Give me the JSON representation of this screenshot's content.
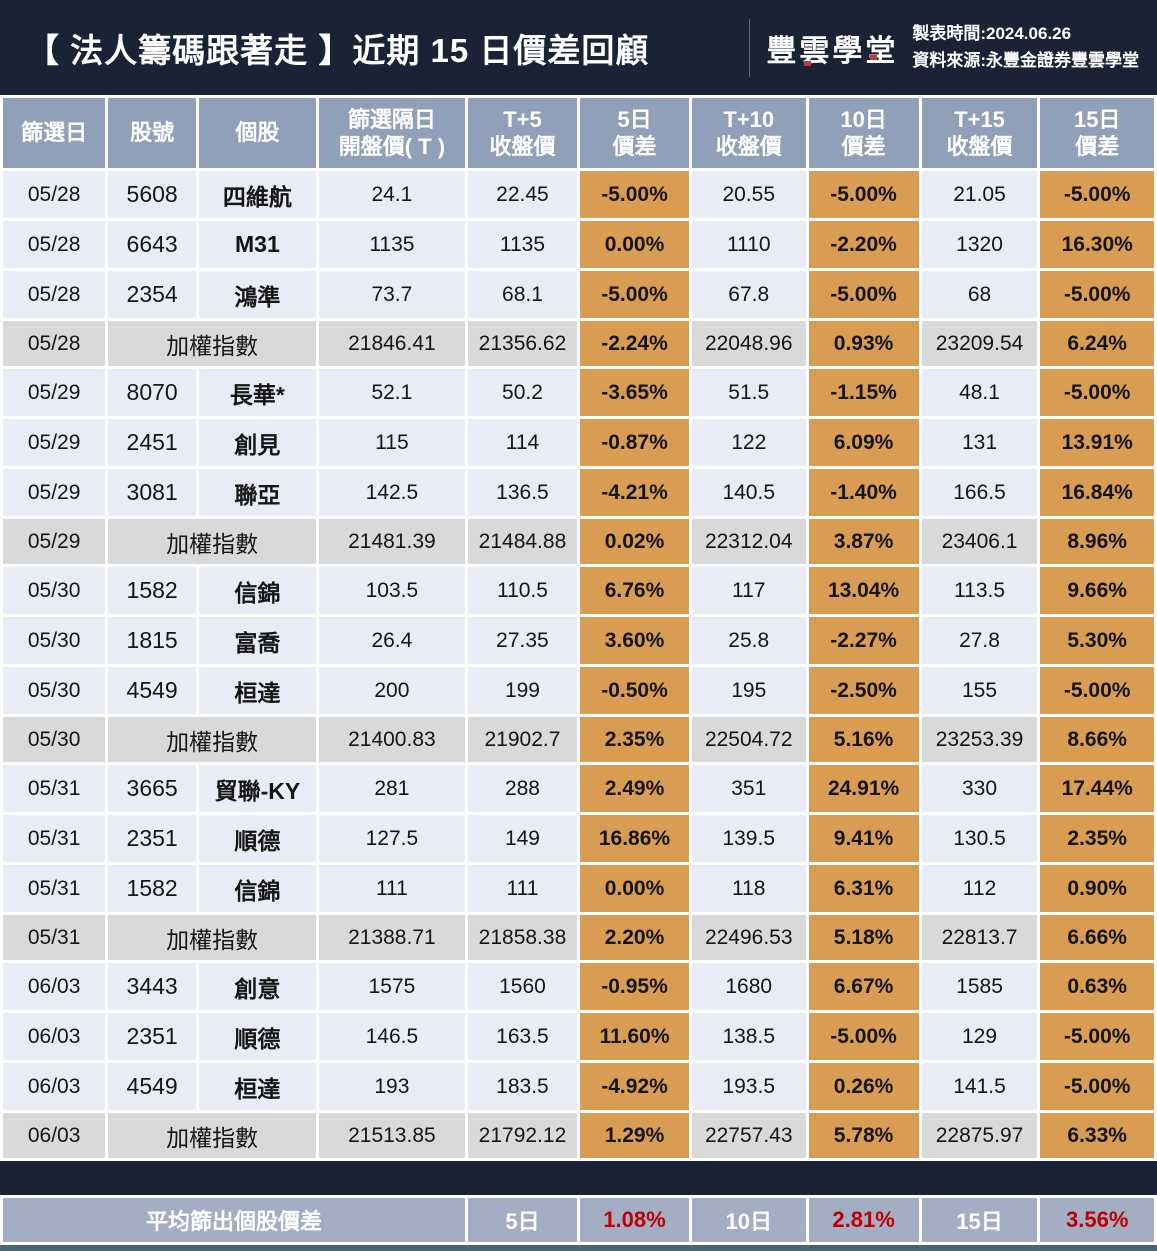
{
  "header": {
    "title": "【 法人籌碼跟著走 】近期 15 日價差回顧",
    "logo": "豐雲學堂",
    "made_time": "製表時間:2024.06.26",
    "source": "資料來源:永豐金證券豐雲學堂"
  },
  "colors": {
    "navy": "#1a2336",
    "header_cell": "#91a0b9",
    "row_bg": "#e9ecf6",
    "index_row_bg": "#d9d9d9",
    "diff_cell_orange": "#d99c53",
    "footer_bg": "#a3aec4",
    "footer_value_red": "#c00000",
    "logo_accent_red": "#c43a2e",
    "bottom_strip": "#4a6473"
  },
  "chart_data": {
    "type": "table",
    "columns": [
      [
        "篩選日"
      ],
      [
        "股號"
      ],
      [
        "個股"
      ],
      [
        "篩選隔日",
        "開盤價( T )"
      ],
      [
        "T+5",
        "收盤價"
      ],
      [
        "5日",
        "價差"
      ],
      [
        "T+10",
        "收盤價"
      ],
      [
        "10日",
        "價差"
      ],
      [
        "T+15",
        "收盤價"
      ],
      [
        "15日",
        "價差"
      ]
    ],
    "rows": [
      {
        "kind": "stock",
        "date": "05/28",
        "code": "5608",
        "name": "四維航",
        "open": "24.1",
        "t5": "22.45",
        "d5": "-5.00%",
        "t10": "20.55",
        "d10": "-5.00%",
        "t15": "21.05",
        "d15": "-5.00%"
      },
      {
        "kind": "stock",
        "date": "05/28",
        "code": "6643",
        "name": "M31",
        "open": "1135",
        "t5": "1135",
        "d5": "0.00%",
        "t10": "1110",
        "d10": "-2.20%",
        "t15": "1320",
        "d15": "16.30%"
      },
      {
        "kind": "stock",
        "date": "05/28",
        "code": "2354",
        "name": "鴻準",
        "open": "73.7",
        "t5": "68.1",
        "d5": "-5.00%",
        "t10": "67.8",
        "d10": "-5.00%",
        "t15": "68",
        "d15": "-5.00%"
      },
      {
        "kind": "index",
        "date": "05/28",
        "name": "加權指數",
        "open": "21846.41",
        "t5": "21356.62",
        "d5": "-2.24%",
        "t10": "22048.96",
        "d10": "0.93%",
        "t15": "23209.54",
        "d15": "6.24%"
      },
      {
        "kind": "stock",
        "date": "05/29",
        "code": "8070",
        "name": "長華*",
        "open": "52.1",
        "t5": "50.2",
        "d5": "-3.65%",
        "t10": "51.5",
        "d10": "-1.15%",
        "t15": "48.1",
        "d15": "-5.00%"
      },
      {
        "kind": "stock",
        "date": "05/29",
        "code": "2451",
        "name": "創見",
        "open": "115",
        "t5": "114",
        "d5": "-0.87%",
        "t10": "122",
        "d10": "6.09%",
        "t15": "131",
        "d15": "13.91%"
      },
      {
        "kind": "stock",
        "date": "05/29",
        "code": "3081",
        "name": "聯亞",
        "open": "142.5",
        "t5": "136.5",
        "d5": "-4.21%",
        "t10": "140.5",
        "d10": "-1.40%",
        "t15": "166.5",
        "d15": "16.84%"
      },
      {
        "kind": "index",
        "date": "05/29",
        "name": "加權指數",
        "open": "21481.39",
        "t5": "21484.88",
        "d5": "0.02%",
        "t10": "22312.04",
        "d10": "3.87%",
        "t15": "23406.1",
        "d15": "8.96%"
      },
      {
        "kind": "stock",
        "date": "05/30",
        "code": "1582",
        "name": "信錦",
        "open": "103.5",
        "t5": "110.5",
        "d5": "6.76%",
        "t10": "117",
        "d10": "13.04%",
        "t15": "113.5",
        "d15": "9.66%"
      },
      {
        "kind": "stock",
        "date": "05/30",
        "code": "1815",
        "name": "富喬",
        "open": "26.4",
        "t5": "27.35",
        "d5": "3.60%",
        "t10": "25.8",
        "d10": "-2.27%",
        "t15": "27.8",
        "d15": "5.30%"
      },
      {
        "kind": "stock",
        "date": "05/30",
        "code": "4549",
        "name": "桓達",
        "open": "200",
        "t5": "199",
        "d5": "-0.50%",
        "t10": "195",
        "d10": "-2.50%",
        "t15": "155",
        "d15": "-5.00%"
      },
      {
        "kind": "index",
        "date": "05/30",
        "name": "加權指數",
        "open": "21400.83",
        "t5": "21902.7",
        "d5": "2.35%",
        "t10": "22504.72",
        "d10": "5.16%",
        "t15": "23253.39",
        "d15": "8.66%"
      },
      {
        "kind": "stock",
        "date": "05/31",
        "code": "3665",
        "name": "貿聯-KY",
        "open": "281",
        "t5": "288",
        "d5": "2.49%",
        "t10": "351",
        "d10": "24.91%",
        "t15": "330",
        "d15": "17.44%"
      },
      {
        "kind": "stock",
        "date": "05/31",
        "code": "2351",
        "name": "順德",
        "open": "127.5",
        "t5": "149",
        "d5": "16.86%",
        "t10": "139.5",
        "d10": "9.41%",
        "t15": "130.5",
        "d15": "2.35%"
      },
      {
        "kind": "stock",
        "date": "05/31",
        "code": "1582",
        "name": "信錦",
        "open": "111",
        "t5": "111",
        "d5": "0.00%",
        "t10": "118",
        "d10": "6.31%",
        "t15": "112",
        "d15": "0.90%"
      },
      {
        "kind": "index",
        "date": "05/31",
        "name": "加權指數",
        "open": "21388.71",
        "t5": "21858.38",
        "d5": "2.20%",
        "t10": "22496.53",
        "d10": "5.18%",
        "t15": "22813.7",
        "d15": "6.66%"
      },
      {
        "kind": "stock",
        "date": "06/03",
        "code": "3443",
        "name": "創意",
        "open": "1575",
        "t5": "1560",
        "d5": "-0.95%",
        "t10": "1680",
        "d10": "6.67%",
        "t15": "1585",
        "d15": "0.63%"
      },
      {
        "kind": "stock",
        "date": "06/03",
        "code": "2351",
        "name": "順德",
        "open": "146.5",
        "t5": "163.5",
        "d5": "11.60%",
        "t10": "138.5",
        "d10": "-5.00%",
        "t15": "129",
        "d15": "-5.00%"
      },
      {
        "kind": "stock",
        "date": "06/03",
        "code": "4549",
        "name": "桓達",
        "open": "193",
        "t5": "183.5",
        "d5": "-4.92%",
        "t10": "193.5",
        "d10": "0.26%",
        "t15": "141.5",
        "d15": "-5.00%"
      },
      {
        "kind": "index",
        "date": "06/03",
        "name": "加權指數",
        "open": "21513.85",
        "t5": "21792.12",
        "d5": "1.29%",
        "t10": "22757.43",
        "d10": "5.78%",
        "t15": "22875.97",
        "d15": "6.33%"
      }
    ],
    "summary": {
      "label": "平均篩出個股價差",
      "periods": [
        {
          "label": "5日",
          "value": "1.08%"
        },
        {
          "label": "10日",
          "value": "2.81%"
        },
        {
          "label": "15日",
          "value": "3.56%"
        }
      ]
    }
  }
}
